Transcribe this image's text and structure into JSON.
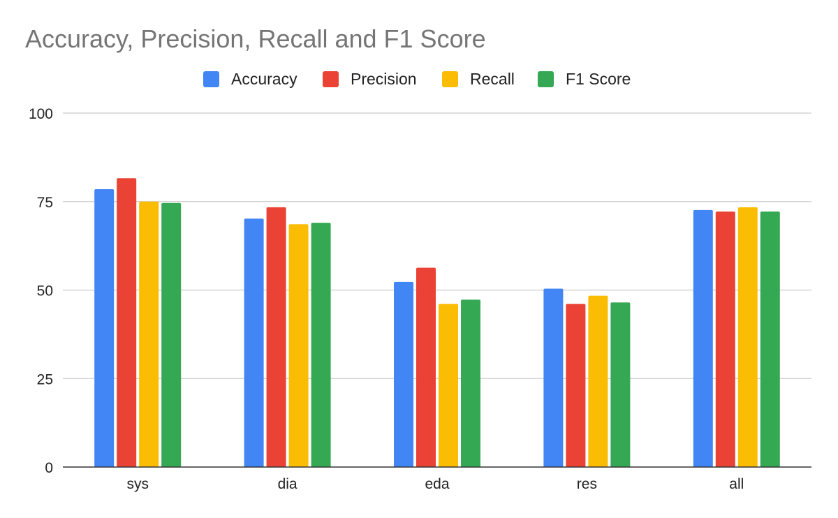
{
  "chart_data": {
    "type": "bar",
    "title": "Accuracy, Precision, Recall and F1 Score",
    "xlabel": "",
    "ylabel": "",
    "categories": [
      "sys",
      "dia",
      "eda",
      "res",
      "all"
    ],
    "series": [
      {
        "name": "Accuracy",
        "color": "#4285F4",
        "values": [
          78.5,
          70.2,
          52.3,
          50.4,
          72.6
        ]
      },
      {
        "name": "Precision",
        "color": "#EA4335",
        "values": [
          81.6,
          73.4,
          56.3,
          46.1,
          72.2
        ]
      },
      {
        "name": "Recall",
        "color": "#FBBC04",
        "values": [
          75.0,
          68.6,
          46.1,
          48.4,
          73.4
        ]
      },
      {
        "name": "F1 Score",
        "color": "#34A853",
        "values": [
          74.6,
          69.0,
          47.3,
          46.5,
          72.2
        ]
      }
    ],
    "ylim": [
      0,
      100
    ],
    "yticks": [
      0,
      25,
      50,
      75,
      100
    ],
    "grid": true,
    "legend_position": "top-center"
  }
}
